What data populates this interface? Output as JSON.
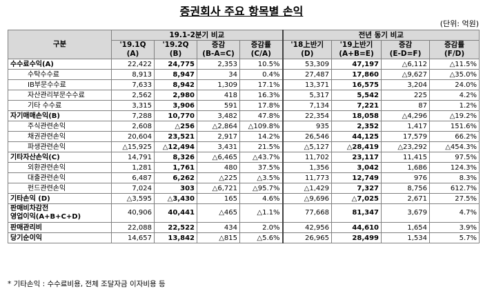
{
  "title": "증권회사 주요 항목별 손익",
  "unit": "(단위: 억원)",
  "header": {
    "category": "구분",
    "group1": "19.1-2분기 비교",
    "group2": "전년 동기 비교",
    "g1_cols": [
      "'19.1Q\n(A)",
      "'19.2Q\n(B)",
      "증감\n(B-A=C)",
      "증감률\n(C/A)"
    ],
    "g2_cols": [
      "'18上반기\n(D)",
      "'19上반기\n(A+B=E)",
      "증감\n(E-D=F)",
      "증감률\n(F/D)"
    ]
  },
  "rows": [
    {
      "label": "수수료수익(A)",
      "type": "major",
      "vals": [
        "22,422",
        "24,775",
        "2,353",
        "10.5%",
        "53,309",
        "47,197",
        "△6,112",
        "△11.5%"
      ]
    },
    {
      "label": "수탁수수료",
      "type": "sub",
      "vals": [
        "8,913",
        "8,947",
        "34",
        "0.4%",
        "27,487",
        "17,860",
        "△9,627",
        "△35.0%"
      ]
    },
    {
      "label": "IB부문수수료",
      "type": "sub",
      "vals": [
        "7,633",
        "8,942",
        "1,309",
        "17.1%",
        "13,371",
        "16,575",
        "3,204",
        "24.0%"
      ]
    },
    {
      "label": "자산관리부문수수료",
      "type": "sub",
      "vals": [
        "2,562",
        "2,980",
        "418",
        "16.3%",
        "5,317",
        "5,542",
        "225",
        "4.2%"
      ]
    },
    {
      "label": "기타 수수료",
      "type": "sub",
      "vals": [
        "3,315",
        "3,906",
        "591",
        "17.8%",
        "7,134",
        "7,221",
        "87",
        "1.2%"
      ]
    },
    {
      "label": "자기매매손익(B)",
      "type": "major",
      "vals": [
        "7,288",
        "10,770",
        "3,482",
        "47.8%",
        "22,354",
        "18,058",
        "△4,296",
        "△19.2%"
      ]
    },
    {
      "label": "주식관련손익",
      "type": "sub",
      "vals": [
        "2,608",
        "△256",
        "△2,864",
        "△109.8%",
        "935",
        "2,352",
        "1,417",
        "151.6%"
      ]
    },
    {
      "label": "채권관련손익",
      "type": "sub",
      "vals": [
        "20,604",
        "23,521",
        "2,917",
        "14.2%",
        "26,546",
        "44,125",
        "17,579",
        "66.2%"
      ]
    },
    {
      "label": "파생관련손익",
      "type": "sub",
      "vals": [
        "△15,925",
        "△12,494",
        "3,431",
        "21.5%",
        "△5,127",
        "△28,419",
        "△23,292",
        "△454.3%"
      ]
    },
    {
      "label": "기타자산손익(C)",
      "type": "major",
      "vals": [
        "14,791",
        "8,326",
        "△6,465",
        "△43.7%",
        "11,702",
        "23,117",
        "11,415",
        "97.5%"
      ]
    },
    {
      "label": "외환관련손익",
      "type": "sub",
      "vals": [
        "1,281",
        "1,761",
        "480",
        "37.5%",
        "1,356",
        "3,042",
        "1,686",
        "124.3%"
      ]
    },
    {
      "label": "대출관련손익",
      "type": "sub",
      "vals": [
        "6,487",
        "6,262",
        "△225",
        "△3.5%",
        "11,773",
        "12,749",
        "976",
        "8.3%"
      ]
    },
    {
      "label": "펀드관련손익",
      "type": "sub",
      "vals": [
        "7,024",
        "303",
        "△6,721",
        "△95.7%",
        "△1,429",
        "7,327",
        "8,756",
        "612.7%"
      ]
    },
    {
      "label": "기타손익 (D)",
      "type": "major",
      "vals": [
        "△3,595",
        "△3,430",
        "165",
        "4.6%",
        "△9,696",
        "△7,025",
        "2,671",
        "27.5%"
      ]
    },
    {
      "label": "판매비차감전\n영업이익(A+B+C+D)",
      "type": "major tall",
      "vals": [
        "40,906",
        "40,441",
        "△465",
        "△1.1%",
        "77,668",
        "81,347",
        "3,679",
        "4.7%"
      ]
    },
    {
      "label": "판매관리비",
      "type": "major",
      "vals": [
        "22,088",
        "22,522",
        "434",
        "2.0%",
        "42,956",
        "44,610",
        "1,654",
        "3.9%"
      ]
    },
    {
      "label": "당기순이익",
      "type": "major",
      "vals": [
        "14,657",
        "13,842",
        "△815",
        "△5.6%",
        "26,965",
        "28,499",
        "1,534",
        "5.7%"
      ]
    }
  ],
  "footnote": "* 기타손익 : 수수료비용, 전체 조달자금 이자비용 등"
}
